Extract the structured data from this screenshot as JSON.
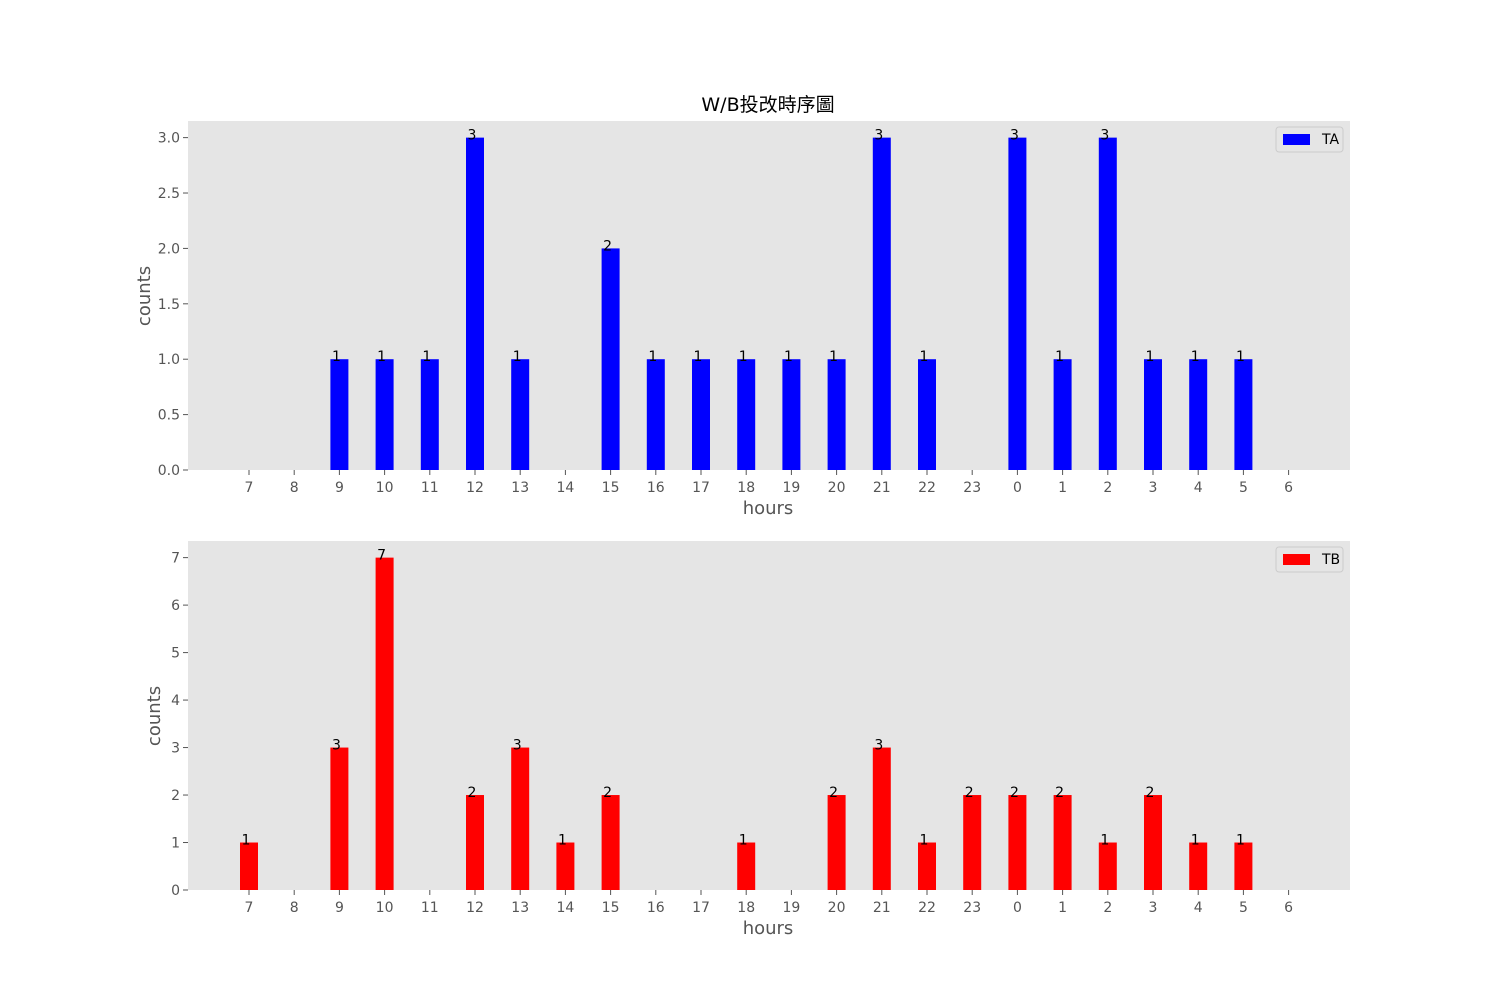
{
  "chart_data": [
    {
      "type": "bar",
      "title": "W/B投改時序圖",
      "xlabel": "hours",
      "ylabel": "counts",
      "categories": [
        "7",
        "8",
        "9",
        "10",
        "11",
        "12",
        "13",
        "14",
        "15",
        "16",
        "17",
        "18",
        "19",
        "20",
        "21",
        "22",
        "23",
        "0",
        "1",
        "2",
        "3",
        "4",
        "5",
        "6"
      ],
      "series": [
        {
          "name": "TA",
          "color": "#0000ff",
          "values": [
            0,
            0,
            1,
            1,
            1,
            3,
            1,
            0,
            2,
            1,
            1,
            1,
            1,
            1,
            3,
            1,
            0,
            3,
            1,
            3,
            1,
            1,
            1,
            0
          ]
        }
      ],
      "yticks": [
        "0.0",
        "0.5",
        "1.0",
        "1.5",
        "2.0",
        "2.5",
        "3.0"
      ],
      "ylim": [
        0,
        3.15
      ],
      "grid": false,
      "legend": "top-right",
      "background": "#e5e5e5"
    },
    {
      "type": "bar",
      "title": "",
      "xlabel": "hours",
      "ylabel": "counts",
      "categories": [
        "7",
        "8",
        "9",
        "10",
        "11",
        "12",
        "13",
        "14",
        "15",
        "16",
        "17",
        "18",
        "19",
        "20",
        "21",
        "22",
        "23",
        "0",
        "1",
        "2",
        "3",
        "4",
        "5",
        "6"
      ],
      "series": [
        {
          "name": "TB",
          "color": "#ff0000",
          "values": [
            1,
            0,
            3,
            7,
            0,
            2,
            3,
            1,
            2,
            0,
            0,
            1,
            0,
            2,
            3,
            1,
            2,
            2,
            2,
            1,
            2,
            1,
            1,
            0
          ]
        }
      ],
      "yticks": [
        "0",
        "1",
        "2",
        "3",
        "4",
        "5",
        "6",
        "7"
      ],
      "ylim": [
        0,
        7.35
      ],
      "grid": false,
      "legend": "top-right",
      "background": "#e5e5e5"
    }
  ]
}
